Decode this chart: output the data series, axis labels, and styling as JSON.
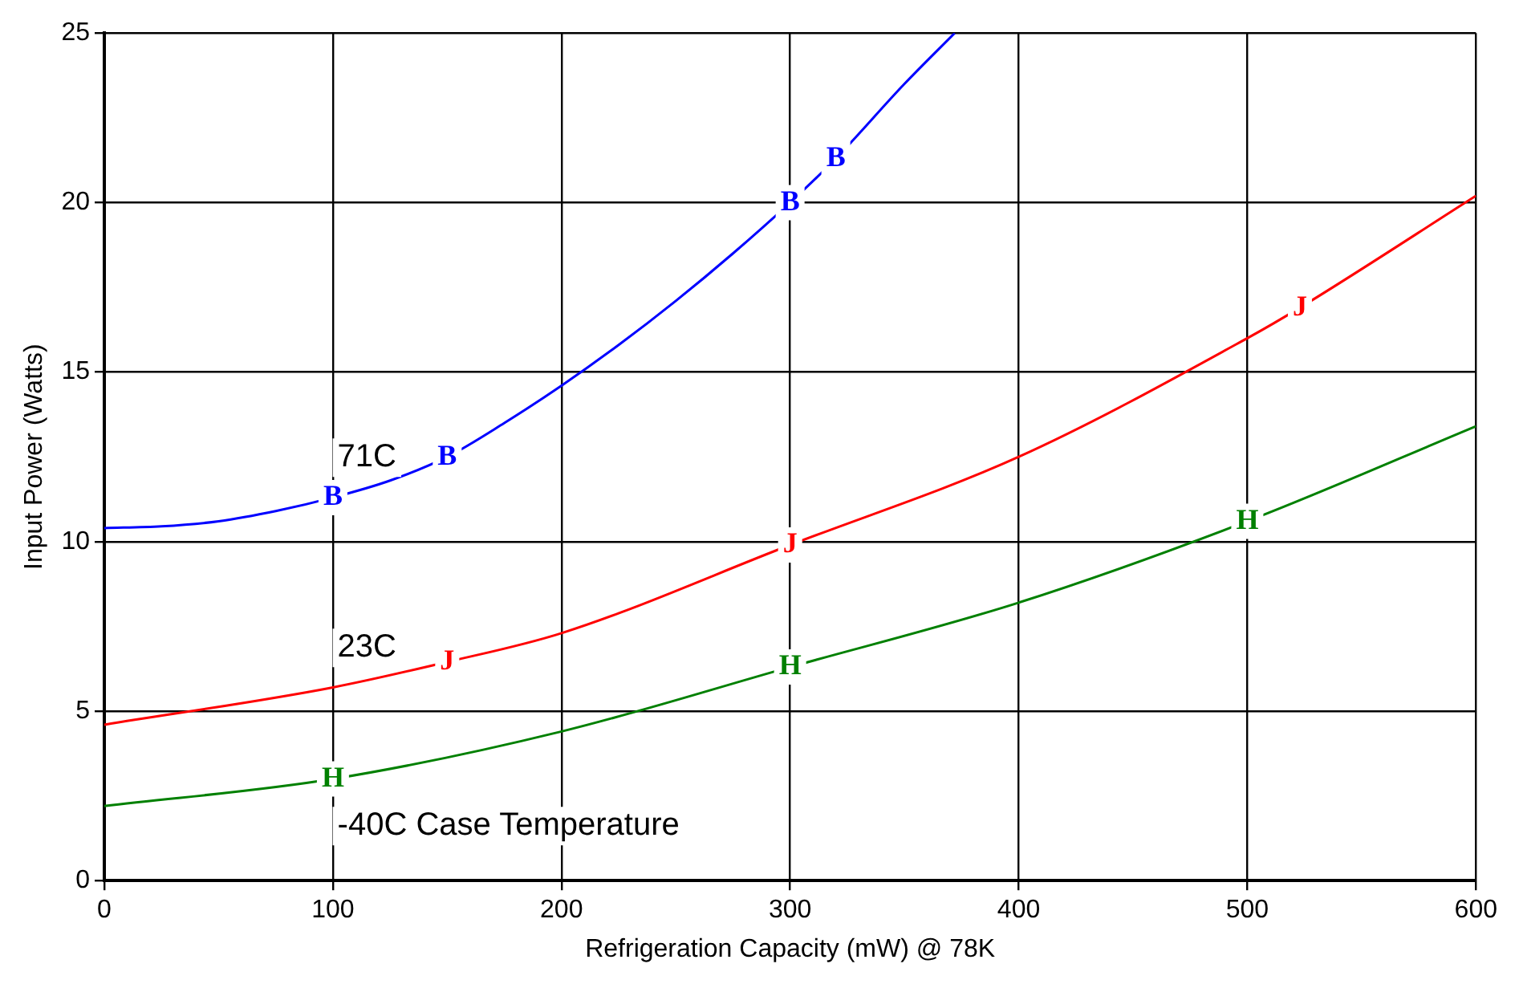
{
  "chart_data": {
    "type": "line",
    "xlabel": "Refrigeration Capacity (mW) @ 78K",
    "ylabel": "Input Power (Watts)",
    "series": [
      {
        "name": "71C",
        "color": "#0000ff",
        "x": [
          0,
          25,
          50,
          75,
          100,
          125,
          150,
          175,
          200,
          225,
          250,
          275,
          300,
          320,
          350,
          372
        ],
        "values": [
          10.4,
          10.45,
          10.6,
          10.9,
          11.3,
          11.8,
          12.5,
          13.5,
          14.6,
          15.8,
          17.1,
          18.5,
          20.0,
          21.3,
          23.5,
          25
        ]
      },
      {
        "name": "23C",
        "color": "#ff0000",
        "x": [
          0,
          100,
          150,
          200,
          300,
          400,
          500,
          523,
          600
        ],
        "values": [
          4.6,
          5.7,
          6.45,
          7.3,
          9.9,
          12.5,
          16.0,
          16.9,
          20.2
        ]
      },
      {
        "name": "-40C Case Temperature",
        "color": "#008000",
        "x": [
          0,
          100,
          200,
          300,
          400,
          500,
          600
        ],
        "values": [
          2.2,
          3.0,
          4.4,
          6.3,
          8.2,
          10.6,
          13.4
        ]
      }
    ],
    "annotations": [
      {
        "text": "B",
        "x": 100,
        "y": 11.3
      },
      {
        "text": "B",
        "x": 150,
        "y": 12.5
      },
      {
        "text": "B",
        "x": 300,
        "y": 20.0
      },
      {
        "text": "B",
        "x": 320,
        "y": 21.3
      },
      {
        "text": "J",
        "x": 150,
        "y": 6.45
      },
      {
        "text": "J",
        "x": 300,
        "y": 9.9
      },
      {
        "text": "J",
        "x": 523,
        "y": 16.9
      },
      {
        "text": "H",
        "x": 100,
        "y": 3.0
      },
      {
        "text": "H",
        "x": 300,
        "y": 6.3
      },
      {
        "text": "H",
        "x": 500,
        "y": 10.6
      }
    ],
    "xlim": [
      0,
      600
    ],
    "xticks": [
      0,
      100,
      200,
      300,
      400,
      500,
      600
    ],
    "ylim": [
      0,
      25
    ],
    "yticks": [
      0,
      5,
      10,
      15,
      20,
      25
    ],
    "grid": true,
    "marker": "none",
    "line_style": "solid",
    "legend": false
  }
}
